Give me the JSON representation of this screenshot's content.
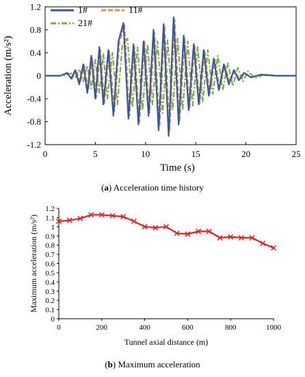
{
  "chart_data": [
    {
      "type": "line",
      "xlabel": "Time (s)",
      "ylabel": "Acceleration (m/s²)",
      "xlim": [
        0,
        25
      ],
      "ylim": [
        -1.2,
        1.2
      ],
      "xticks": [
        "0",
        "5",
        "10",
        "15",
        "20",
        "25"
      ],
      "yticks": [
        "-1.2",
        "-0.8",
        "-0.4",
        "0",
        "0.4",
        "0.8",
        "1.2"
      ],
      "grid": false,
      "legend": "top-left",
      "series": [
        {
          "name": "1#",
          "color": "#2E5AA8",
          "style": "solid",
          "x": [
            0,
            1.5,
            2.2,
            2.6,
            3.0,
            3.4,
            3.8,
            4.2,
            4.6,
            5.0,
            5.4,
            5.8,
            6.3,
            6.8,
            7.3,
            7.8,
            8.3,
            8.8,
            9.3,
            9.8,
            10.3,
            10.8,
            11.3,
            11.8,
            12.3,
            12.8,
            13.3,
            13.8,
            14.3,
            14.8,
            15.3,
            15.8,
            16.3,
            16.8,
            17.3,
            17.8,
            18.3,
            18.8,
            19.3,
            19.8,
            20.5,
            21.5,
            23,
            25
          ],
          "y": [
            0,
            0,
            0.05,
            -0.05,
            0.1,
            -0.15,
            0.2,
            -0.3,
            0.35,
            -0.4,
            0.5,
            -0.5,
            0.45,
            -0.7,
            0.6,
            0.92,
            -0.75,
            0.55,
            -0.85,
            0.6,
            -0.7,
            0.8,
            -0.95,
            0.9,
            -1.05,
            1.02,
            -0.85,
            0.7,
            -0.6,
            0.55,
            -0.5,
            0.45,
            -0.35,
            0.3,
            -0.25,
            0.2,
            -0.15,
            0.1,
            -0.08,
            0.05,
            -0.03,
            0.02,
            0,
            0
          ]
        },
        {
          "name": "11#",
          "color": "#F08A30",
          "style": "dashed",
          "x": [
            0,
            1.5,
            2.3,
            2.7,
            3.1,
            3.5,
            3.9,
            4.3,
            4.7,
            5.1,
            5.5,
            5.9,
            6.4,
            6.9,
            7.4,
            7.9,
            8.4,
            8.9,
            9.4,
            9.9,
            10.4,
            10.9,
            11.4,
            11.9,
            12.4,
            12.9,
            13.4,
            13.9,
            14.4,
            14.9,
            15.4,
            15.9,
            16.4,
            16.9,
            17.4,
            17.9,
            18.4,
            18.9,
            19.4,
            19.9,
            20.6,
            21.6,
            23,
            25
          ],
          "y": [
            0,
            0,
            0.04,
            -0.05,
            0.1,
            -0.12,
            0.18,
            -0.25,
            0.3,
            -0.38,
            0.45,
            -0.48,
            0.42,
            -0.62,
            0.58,
            0.88,
            -0.7,
            0.5,
            -0.8,
            0.6,
            -0.65,
            0.75,
            -0.88,
            0.88,
            -0.95,
            0.98,
            -0.78,
            0.65,
            -0.55,
            0.52,
            -0.48,
            0.42,
            -0.32,
            0.28,
            -0.22,
            0.18,
            -0.12,
            0.08,
            -0.06,
            0.04,
            -0.02,
            0.01,
            0,
            0
          ]
        },
        {
          "name": "21#",
          "color": "#6EB246",
          "style": "dash-dot",
          "x": [
            0,
            1.8,
            2.6,
            3.0,
            3.4,
            3.8,
            4.2,
            4.6,
            5.0,
            5.4,
            5.8,
            6.2,
            6.7,
            7.2,
            7.7,
            8.2,
            8.7,
            9.2,
            9.7,
            10.2,
            10.7,
            11.2,
            11.7,
            12.2,
            12.7,
            13.2,
            13.7,
            14.2,
            14.7,
            15.2,
            15.7,
            16.2,
            16.7,
            17.2,
            17.7,
            18.2,
            18.7,
            19.2,
            19.7,
            20.2,
            20.9,
            21.9,
            23.3,
            25
          ],
          "y": [
            0,
            0,
            0.04,
            -0.04,
            0.12,
            -0.1,
            0.18,
            -0.22,
            0.28,
            -0.3,
            0.38,
            -0.4,
            0.4,
            -0.5,
            0.55,
            0.65,
            -0.55,
            0.5,
            -0.6,
            0.55,
            -0.5,
            0.6,
            -0.65,
            0.62,
            -0.6,
            0.65,
            -0.6,
            0.6,
            -0.52,
            0.5,
            -0.45,
            0.45,
            -0.32,
            0.35,
            -0.25,
            0.22,
            -0.18,
            0.14,
            -0.1,
            0.08,
            -0.04,
            0.02,
            0,
            0
          ]
        }
      ]
    },
    {
      "type": "line",
      "xlabel": "Tunnel axial distance (m)",
      "ylabel": "Maximum acceleration (m/s²)",
      "xlim": [
        0,
        1000
      ],
      "ylim": [
        0,
        1.2
      ],
      "xticks": [
        "0",
        "200",
        "400",
        "600",
        "800",
        "1000"
      ],
      "yticks": [
        "0",
        "0.1",
        "0.2",
        "0.3",
        "0.4",
        "0.5",
        "0.6",
        "0.7",
        "0.8",
        "0.9",
        "1",
        "1.1",
        "1.2"
      ],
      "grid": false,
      "series": [
        {
          "color": "#E8201C",
          "marker": "x",
          "x": [
            0,
            50,
            100,
            150,
            200,
            250,
            300,
            350,
            400,
            450,
            500,
            550,
            600,
            650,
            700,
            750,
            800,
            850,
            900,
            950,
            1000
          ],
          "y": [
            1.06,
            1.07,
            1.09,
            1.13,
            1.13,
            1.12,
            1.11,
            1.06,
            1.0,
            0.99,
            1.0,
            0.93,
            0.92,
            0.95,
            0.95,
            0.88,
            0.89,
            0.88,
            0.88,
            0.82,
            0.77
          ]
        }
      ]
    }
  ],
  "captions": {
    "a_label": "a",
    "a_text": "Acceleration time history",
    "b_label": "b",
    "b_text": "Maximum acceleration"
  }
}
